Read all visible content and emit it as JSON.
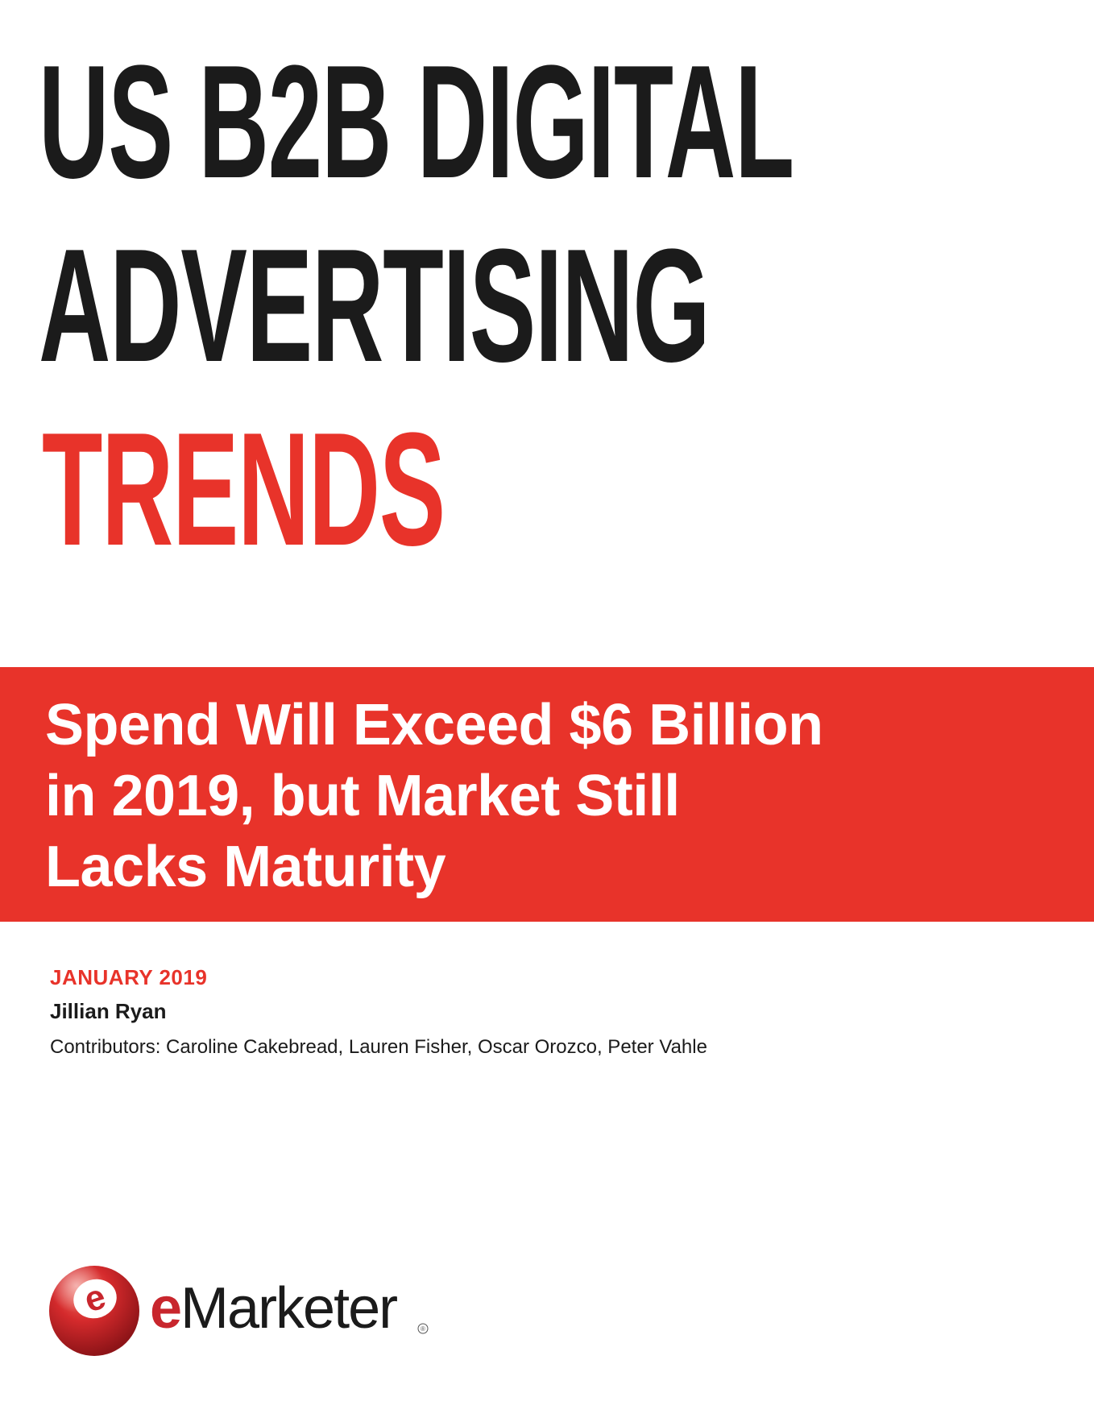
{
  "title": {
    "line1": "US B2B DIGITAL",
    "line2": "ADVERTISING",
    "line3": "TRENDS"
  },
  "subtitle": {
    "line1": "Spend Will Exceed $6 Billion",
    "line2": "in 2019, but Market Still",
    "line3": "Lacks Maturity"
  },
  "meta": {
    "date": "JANUARY 2019",
    "author": "Jillian Ryan",
    "contributors": "Contributors: Caroline Cakebread, Lauren Fisher, Oscar Orozco, Peter Vahle"
  },
  "logo": {
    "emblem_letter": "e",
    "wordmark_e": "e",
    "wordmark_rest": "Marketer",
    "registered_mark": "®"
  },
  "colors": {
    "accent_red": "#e8332a",
    "text_dark": "#1b1b1b",
    "logo_red": "#c8262d"
  }
}
